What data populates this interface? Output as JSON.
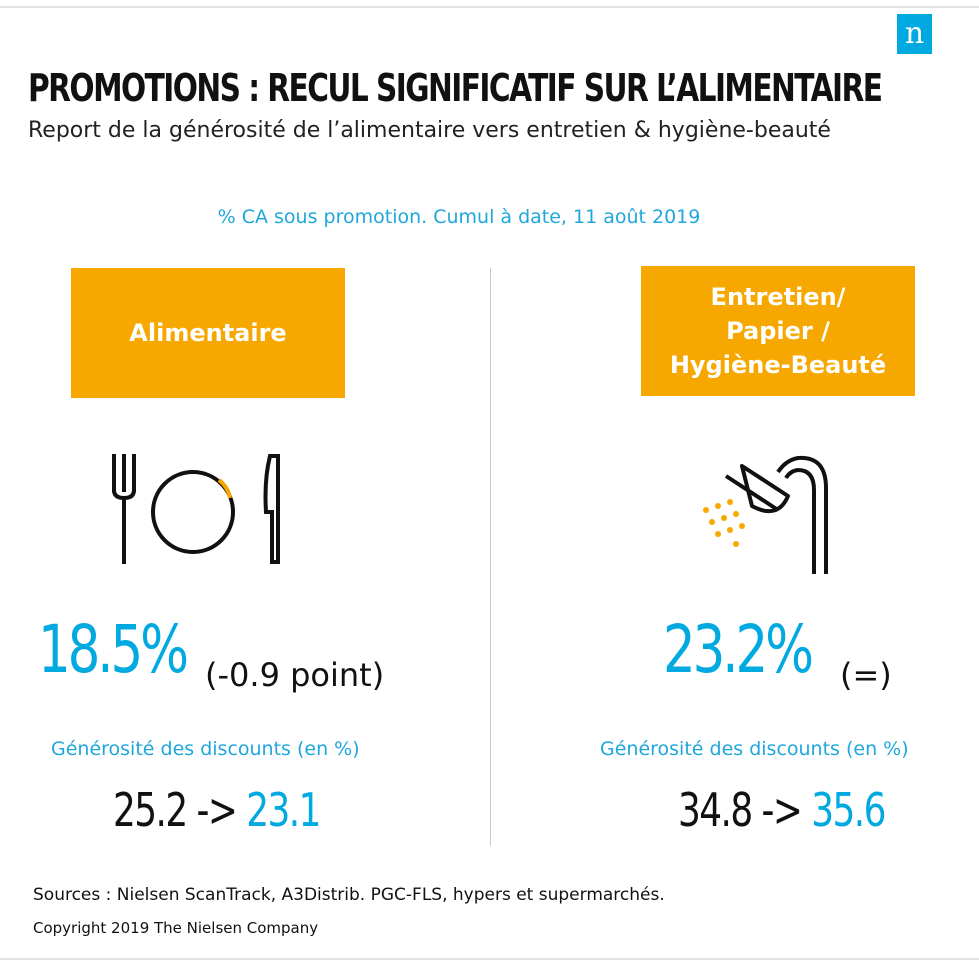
{
  "header": {
    "title": "PROMOTIONS : RECUL SIGNIFICATIF SUR L’ALIMENTAIRE",
    "subtitle": "Report de la générosité de l’alimentaire vers entretien & hygiène-beauté",
    "logo_letter": "n"
  },
  "chart_note": "% CA sous promotion.  Cumul à date, 11 août 2019",
  "left": {
    "category": "Alimentaire",
    "icon": "fork-plate-knife-icon",
    "share": "18.5%",
    "delta": "(-0.9 point)",
    "discount_label": "Générosité des discounts (en %)",
    "discount_before": "25.2 ->",
    "discount_after": "23.1"
  },
  "right": {
    "category": "Entretien/\nPapier /\nHygiène-Beauté",
    "icon": "shower-head-icon",
    "share": "23.2%",
    "delta": "(=)",
    "discount_label": "Générosité des discounts (en %)",
    "discount_before": "34.8 ->",
    "discount_after": "35.6"
  },
  "footer": {
    "sources": "Sources : Nielsen ScanTrack, A3Distrib. PGC-FLS, hypers et supermarchés.",
    "copyright": "Copyright  2019  The Nielsen  Company"
  },
  "colors": {
    "accent_blue": "#00a9e0",
    "box_orange": "#f7a800",
    "icon_orange": "#f7a800"
  }
}
